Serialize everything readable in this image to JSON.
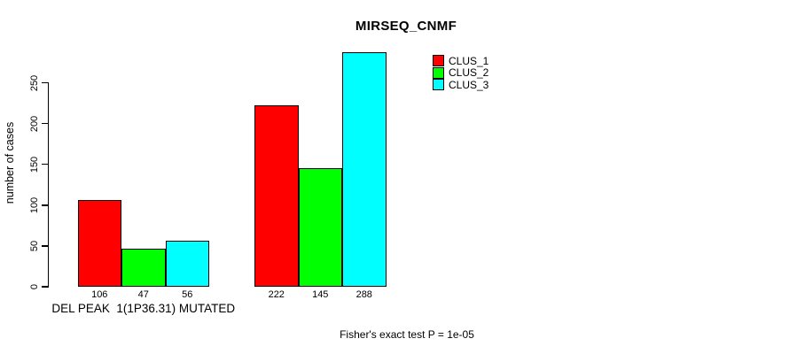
{
  "page": {
    "background_color": "#ffffff",
    "foreground_color": "#000000"
  },
  "chart_data": {
    "type": "bar",
    "title": "MIRSEQ_CNMF",
    "ylabel": "number of cases",
    "xlabel": "",
    "annotation": "Fisher's exact test P = 1e-05",
    "grid": false,
    "legend_position": "top-right-inside",
    "ylim": [
      0,
      300
    ],
    "yticks": [
      0,
      50,
      100,
      150,
      200,
      250
    ],
    "group_labels": [
      "DEL PEAK  1(1P36.31) MUTATED",
      ""
    ],
    "series": [
      {
        "name": "CLUS_1",
        "color": "#ff0000",
        "values": [
          106,
          222
        ]
      },
      {
        "name": "CLUS_2",
        "color": "#00ff00",
        "values": [
          47,
          145
        ]
      },
      {
        "name": "CLUS_3",
        "color": "#00ffff",
        "values": [
          56,
          288
        ]
      }
    ],
    "bar_value_labels": [
      [
        106,
        47,
        56
      ],
      [
        222,
        145,
        288
      ]
    ]
  },
  "legend": {
    "items": [
      {
        "label": "CLUS_1",
        "color": "#ff0000"
      },
      {
        "label": "CLUS_2",
        "color": "#00ff00"
      },
      {
        "label": "CLUS_3",
        "color": "#00ffff"
      }
    ]
  }
}
